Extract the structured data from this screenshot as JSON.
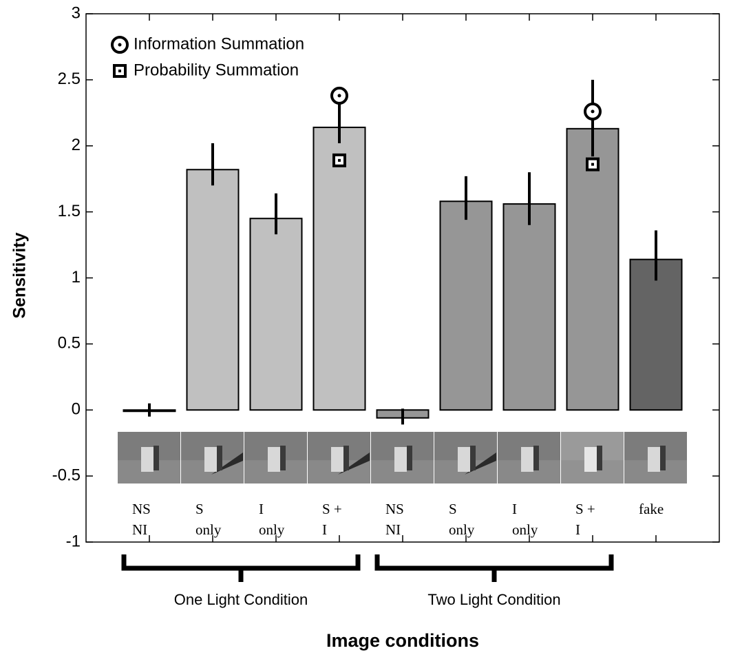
{
  "chart_data": {
    "type": "bar",
    "y_label": "Sensitivity",
    "x_label": "Image conditions",
    "categories": [
      [
        "NS",
        "NI"
      ],
      [
        "S",
        "only"
      ],
      [
        "I",
        "only"
      ],
      [
        "S +",
        "I"
      ],
      [
        "NS",
        "NI"
      ],
      [
        "S",
        "only"
      ],
      [
        "I",
        "only"
      ],
      [
        "S +",
        "I"
      ],
      [
        "fake"
      ]
    ],
    "groups": [
      "One Light Condition",
      "Two Light Condition"
    ],
    "values": [
      0,
      1.82,
      1.45,
      2.14,
      -0.06,
      1.58,
      1.56,
      2.13,
      1.14
    ],
    "error_low": [
      -0.05,
      1.7,
      1.33,
      2.02,
      -0.11,
      1.44,
      1.4,
      1.92,
      0.98
    ],
    "error_high": [
      0.05,
      2.02,
      1.64,
      2.35,
      0.01,
      1.77,
      1.8,
      2.5,
      1.36
    ],
    "colors": [
      "#c0c0c0",
      "#c0c0c0",
      "#c0c0c0",
      "#c0c0c0",
      "#969696",
      "#969696",
      "#969696",
      "#969696",
      "#646464"
    ],
    "series": [
      {
        "name": "Information  Summation",
        "marker": "circle",
        "color": "#000000",
        "values": [
          null,
          null,
          null,
          2.38,
          null,
          null,
          null,
          2.26,
          null
        ]
      },
      {
        "name": "Probability Summation",
        "marker": "square",
        "color": "#000000",
        "values": [
          null,
          null,
          null,
          1.89,
          null,
          null,
          null,
          1.86,
          null
        ]
      }
    ],
    "ylim": [
      -1,
      3
    ],
    "yticks": [
      -1,
      -0.5,
      0,
      0.5,
      1,
      1.5,
      2,
      2.5,
      3
    ]
  }
}
